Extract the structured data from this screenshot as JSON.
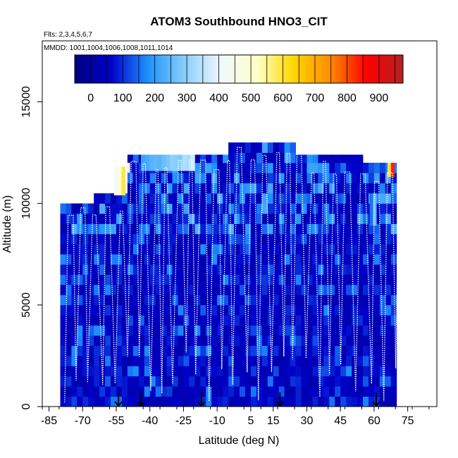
{
  "chart_data": {
    "type": "heatmap",
    "title": "ATOM3 Southbound HNO3_CIT",
    "subtitle_flights": "Flts: 2,3,4,5,6,7",
    "subtitle_dates": "MMDD: 1001,1004,1006,1008,1011,1014",
    "xlabel": "Latitude (deg N)",
    "ylabel": "Altitude (m)",
    "xlim": [
      -88,
      88
    ],
    "ylim": [
      0,
      18000
    ],
    "x_ticks": [
      -85,
      -70,
      -55,
      -40,
      -25,
      -10,
      5,
      15,
      30,
      45,
      60,
      75
    ],
    "x_tick_labels": [
      "-85",
      "-70",
      "-55",
      "-40",
      "-25",
      "-10",
      "5",
      "15",
      "30",
      "45",
      "60",
      "75"
    ],
    "y_ticks": [
      0,
      5000,
      10000,
      15000
    ],
    "y_tick_labels": [
      "0",
      "5000",
      "10000",
      "15000"
    ],
    "colorbar": {
      "range": [
        -50,
        975
      ],
      "ticks": [
        0,
        100,
        200,
        300,
        400,
        500,
        600,
        700,
        800,
        900
      ],
      "tick_labels": [
        "0",
        "100",
        "200",
        "300",
        "400",
        "500",
        "600",
        "700",
        "800",
        "900"
      ],
      "colors": [
        "#000080",
        "#0000c8",
        "#1e90ff",
        "#87cefa",
        "#f0f8ff",
        "#ffffc8",
        "#ffd700",
        "#ff8c00",
        "#ff0000",
        "#b22222"
      ]
    },
    "colors": {
      "background_field": "#7a2fe6",
      "track": "#ffffff",
      "arrow": "#000000"
    },
    "coverage": [
      {
        "lat_min": -80,
        "lat_max": -65,
        "alt_top": 10000
      },
      {
        "lat_min": -65,
        "lat_max": -50,
        "alt_top": 10500
      },
      {
        "lat_min": -50,
        "lat_max": -45,
        "alt_top": 12400
      },
      {
        "lat_min": -45,
        "lat_max": -5,
        "alt_top": 12400
      },
      {
        "lat_min": -5,
        "lat_max": 25,
        "alt_top": 13000
      },
      {
        "lat_min": 25,
        "lat_max": 55,
        "alt_top": 12400
      },
      {
        "lat_min": 55,
        "lat_max": 70,
        "alt_top": 12000
      }
    ],
    "high_features": [
      {
        "lat_min": -44,
        "lat_max": -20,
        "alt_min": 11600,
        "alt_max": 12400,
        "value": 300
      },
      {
        "lat_min": -56,
        "lat_max": -51,
        "alt_min": 10400,
        "alt_max": 11800,
        "value": 550
      },
      {
        "lat_min": -50,
        "lat_max": -49,
        "alt_min": 11500,
        "alt_max": 12000,
        "value": 680
      },
      {
        "lat_min": 66,
        "lat_max": 69,
        "alt_min": 11300,
        "alt_max": 12000,
        "value": 850
      },
      {
        "lat_min": 58,
        "lat_max": 61,
        "alt_min": 8900,
        "alt_max": 10500,
        "value": 250
      }
    ],
    "arrows_lat": [
      -54,
      -44,
      -17,
      18,
      61
    ],
    "flights": [
      2,
      3,
      4,
      5,
      6,
      7
    ],
    "dates_mmdd": [
      1001,
      1004,
      1006,
      1008,
      1011,
      1014
    ]
  }
}
